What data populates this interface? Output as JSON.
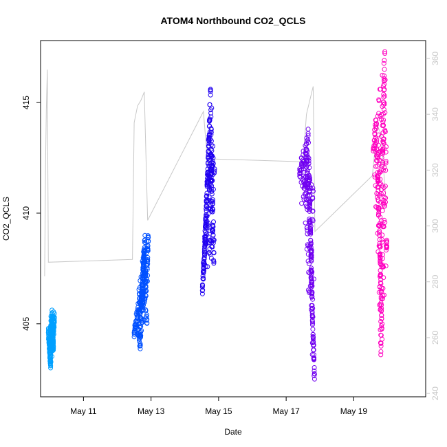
{
  "chart_data": {
    "type": "scatter",
    "title": "ATOM4 Northbound CO2_QCLS",
    "xlabel": "Date",
    "ylabel": "CO2_QCLS",
    "x_ticks": [
      {
        "day": 11,
        "label": "May 11"
      },
      {
        "day": 13,
        "label": "May 13"
      },
      {
        "day": 15,
        "label": "May 15"
      },
      {
        "day": 17,
        "label": "May 17"
      },
      {
        "day": 19,
        "label": "May 19"
      }
    ],
    "xlim": [
      9.73,
      21.13
    ],
    "ylim": [
      401.7,
      417.8
    ],
    "y_ticks": [
      405,
      410,
      415
    ],
    "secondary_axis": {
      "color": "#c8c8c8",
      "ylim": [
        238.8,
        366.4
      ],
      "ticks": [
        240,
        260,
        280,
        300,
        320,
        340,
        360
      ]
    },
    "grid": false,
    "series": [
      {
        "color": "#00a0ff",
        "x_range": [
          9.95,
          10.15
        ],
        "points": [
          [
            9.96,
            404.6
          ],
          [
            9.98,
            404.2
          ],
          [
            10.0,
            403.9
          ],
          [
            10.02,
            403.4
          ],
          [
            10.04,
            404.1
          ],
          [
            10.06,
            404.8
          ],
          [
            10.08,
            405.2
          ],
          [
            10.1,
            404.5
          ],
          [
            10.12,
            404.9
          ],
          [
            10.14,
            405.3
          ],
          [
            10.03,
            403.1
          ],
          [
            10.07,
            405.5
          ],
          [
            10.11,
            404.0
          ]
        ]
      },
      {
        "color": "#0050ff",
        "x_range": [
          12.45,
          12.95
        ],
        "points": [
          [
            12.5,
            404.6
          ],
          [
            12.55,
            405.0
          ],
          [
            12.6,
            405.4
          ],
          [
            12.65,
            404.3
          ],
          [
            12.7,
            405.9
          ],
          [
            12.72,
            406.4
          ],
          [
            12.75,
            407.1
          ],
          [
            12.78,
            407.6
          ],
          [
            12.8,
            408.3
          ],
          [
            12.82,
            408.8
          ],
          [
            12.85,
            406.5
          ],
          [
            12.88,
            405.2
          ],
          [
            12.9,
            407.9
          ],
          [
            12.92,
            408.9
          ],
          [
            12.68,
            404.1
          ],
          [
            12.76,
            406.0
          ],
          [
            12.84,
            407.3
          ]
        ]
      },
      {
        "color": "#2000f0",
        "x_range": [
          14.5,
          14.9
        ],
        "points": [
          [
            14.52,
            406.5
          ],
          [
            14.55,
            407.3
          ],
          [
            14.58,
            408.0
          ],
          [
            14.6,
            408.6
          ],
          [
            14.62,
            409.5
          ],
          [
            14.64,
            410.5
          ],
          [
            14.66,
            411.2
          ],
          [
            14.68,
            412.0
          ],
          [
            14.7,
            412.8
          ],
          [
            14.72,
            413.5
          ],
          [
            14.74,
            414.2
          ],
          [
            14.76,
            415.6
          ],
          [
            14.78,
            411.6
          ],
          [
            14.8,
            412.3
          ],
          [
            14.82,
            410.2
          ],
          [
            14.84,
            409.0
          ],
          [
            14.86,
            407.8
          ],
          [
            14.88,
            412.0
          ]
        ]
      },
      {
        "color": "#7000f0",
        "x_range": [
          17.35,
          17.85
        ],
        "points": [
          [
            17.4,
            411.8
          ],
          [
            17.45,
            412.5
          ],
          [
            17.5,
            412.1
          ],
          [
            17.55,
            411.2
          ],
          [
            17.6,
            412.9
          ],
          [
            17.65,
            413.6
          ],
          [
            17.68,
            411.5
          ],
          [
            17.7,
            410.4
          ],
          [
            17.72,
            409.3
          ],
          [
            17.74,
            407.4
          ],
          [
            17.76,
            406.2
          ],
          [
            17.78,
            405.1
          ],
          [
            17.8,
            404.3
          ],
          [
            17.82,
            403.4
          ],
          [
            17.84,
            402.5
          ],
          [
            17.62,
            412.4
          ],
          [
            17.75,
            408.0
          ],
          [
            17.8,
            411.0
          ]
        ]
      },
      {
        "color": "#ff00c0",
        "x_range": [
          19.55,
          20.0
        ],
        "points": [
          [
            19.58,
            412.9
          ],
          [
            19.62,
            413.6
          ],
          [
            19.66,
            414.2
          ],
          [
            19.7,
            412.5
          ],
          [
            19.72,
            411.5
          ],
          [
            19.74,
            410.2
          ],
          [
            19.76,
            409.0
          ],
          [
            19.78,
            408.0
          ],
          [
            19.8,
            407.0
          ],
          [
            19.82,
            405.6
          ],
          [
            19.84,
            404.3
          ],
          [
            19.86,
            412.8
          ],
          [
            19.88,
            414.9
          ],
          [
            19.9,
            416.0
          ],
          [
            19.92,
            417.3
          ],
          [
            19.94,
            410.5
          ],
          [
            19.96,
            413.0
          ],
          [
            19.98,
            408.5
          ],
          [
            19.8,
            403.6
          ]
        ]
      }
    ],
    "line_series": {
      "color": "#c8c8c8",
      "axis": "secondary",
      "points": [
        [
          9.85,
          282
        ],
        [
          9.88,
          325
        ],
        [
          9.9,
          342
        ],
        [
          9.93,
          356
        ],
        [
          9.96,
          287
        ],
        [
          12.45,
          288
        ],
        [
          12.5,
          337
        ],
        [
          12.6,
          343
        ],
        [
          12.7,
          345
        ],
        [
          12.8,
          348
        ],
        [
          12.9,
          302
        ],
        [
          14.55,
          341
        ],
        [
          14.65,
          326
        ],
        [
          14.75,
          312
        ],
        [
          14.8,
          324
        ],
        [
          17.5,
          323
        ],
        [
          17.6,
          340
        ],
        [
          17.7,
          345
        ],
        [
          17.8,
          350
        ],
        [
          17.85,
          298
        ],
        [
          19.55,
          318
        ],
        [
          19.7,
          336
        ],
        [
          19.8,
          333
        ],
        [
          19.95,
          310
        ]
      ]
    }
  }
}
